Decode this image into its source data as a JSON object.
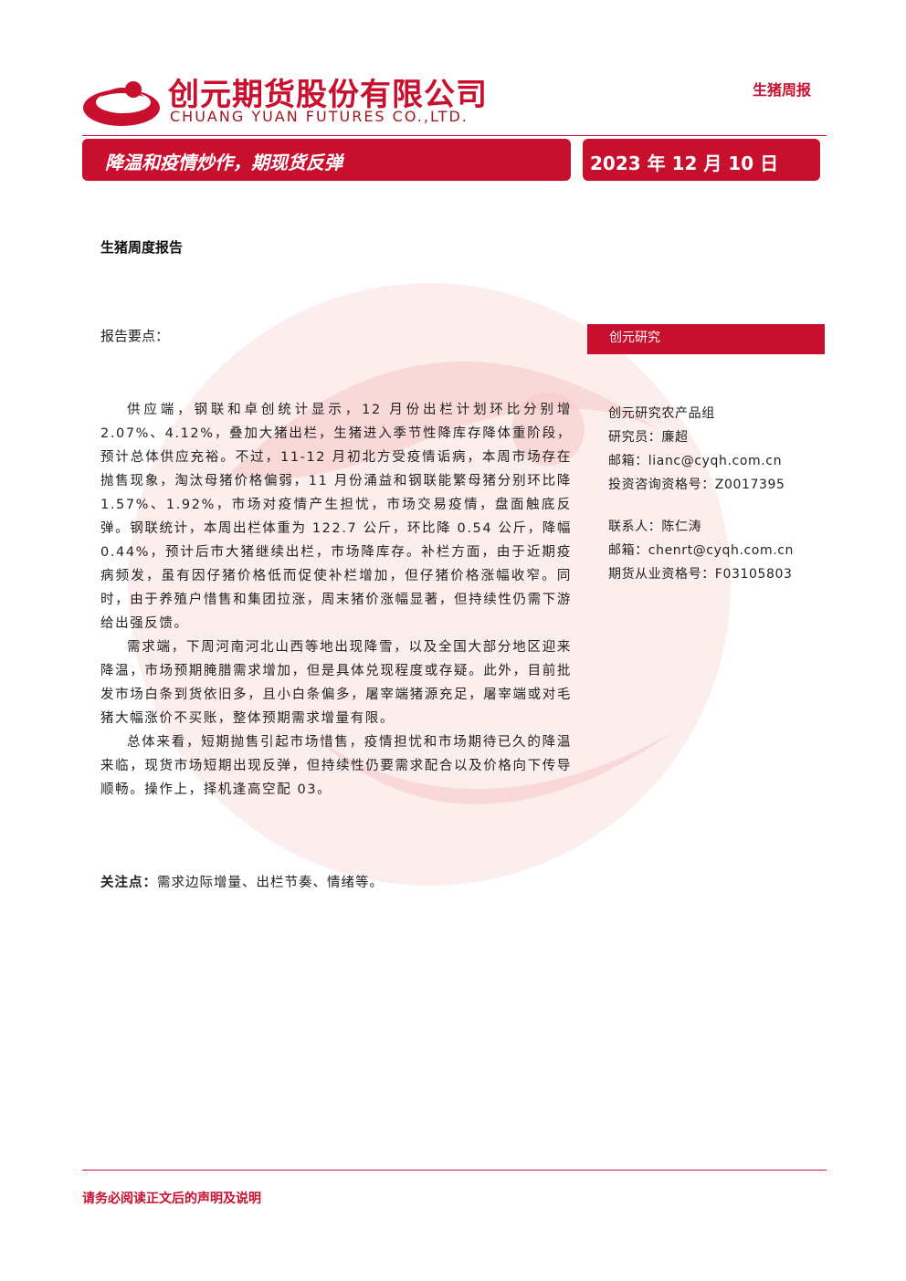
{
  "header": {
    "company_cn": "创元期货股份有限公司",
    "company_en": "CHUANG YUAN FUTURES CO.,LTD.",
    "report_type": "生猪周报",
    "title": "降温和疫情炒作，期现货反弹",
    "date": "2023 年 12 月 10 日"
  },
  "section_title": "生猪周度报告",
  "key_points_label": "报告要点：",
  "sidebar": {
    "title": "创元研究",
    "lines": [
      "创元研究农产品组",
      "研究员：廉超",
      "邮箱：lianc@cyqh.com.cn",
      "投资咨询资格号：Z0017395",
      "联系人：陈仁涛",
      "邮箱：chenrt@cyqh.com.cn",
      "期货从业资格号：F03105803"
    ]
  },
  "body": {
    "paragraphs": [
      "供应端，钢联和卓创统计显示，12 月份出栏计划环比分别增2.07%、4.12%，叠加大猪出栏，生猪进入季节性降库存降体重阶段，预计总体供应充裕。不过，11-12 月初北方受疫情诟病，本周市场存在抛售现象，淘汰母猪价格偏弱，11 月份涌益和钢联能繁母猪分别环比降 1.57%、1.92%，市场对疫情产生担忧，市场交易疫情，盘面触底反弹。钢联统计，本周出栏体重为 122.7 公斤，环比降 0.54 公斤，降幅 0.44%，预计后市大猪继续出栏，市场降库存。补栏方面，由于近期疫病频发，虽有因仔猪价格低而促使补栏增加，但仔猪价格涨幅收窄。同时，由于养殖户惜售和集团拉涨，周末猪价涨幅显著，但持续性仍需下游给出强反馈。",
      "需求端，下周河南河北山西等地出现降雪，以及全国大部分地区迎来降温，市场预期腌腊需求增加，但是具体兑现程度或存疑。此外，目前批发市场白条到货依旧多，且小白条偏多，屠宰端猪源充足，屠宰端或对毛猪大幅涨价不买账，整体预期需求增量有限。",
      "总体来看，短期抛售引起市场惜售，疫情担忧和市场期待已久的降温来临，现货市场短期出现反弹，但持续性仍要需求配合以及价格向下传导顺畅。操作上，择机逢高空配 03。"
    ]
  },
  "focus": {
    "label": "关注点：",
    "text": "需求边际增量、出栏节奏、情绪等。"
  },
  "footer": "请务必阅读正文后的声明及说明"
}
